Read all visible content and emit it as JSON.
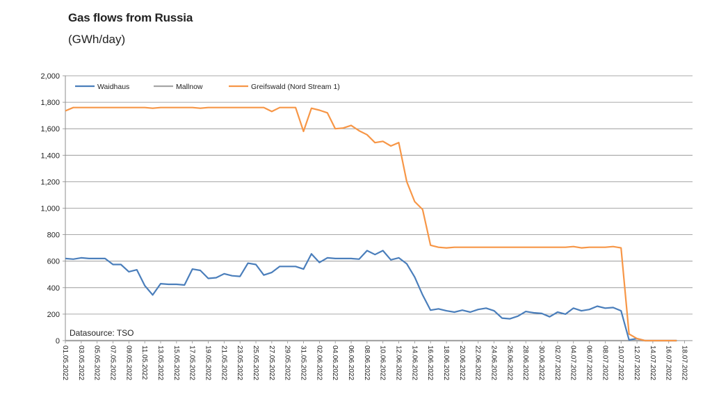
{
  "chart_data": {
    "type": "line",
    "title": "Gas flows from Russia",
    "subtitle": "(GWh/day)",
    "ylim": [
      0,
      2000
    ],
    "yticks": [
      "0",
      "200",
      "400",
      "600",
      "800",
      "1,000",
      "1,200",
      "1,400",
      "1,600",
      "1,800",
      "2,000"
    ],
    "xticks": [
      "01.05.2022",
      "03.05.2022",
      "05.05.2022",
      "07.05.2022",
      "09.05.2022",
      "11.05.2022",
      "13.05.2022",
      "15.05.2022",
      "17.05.2022",
      "19.05.2022",
      "21.05.2022",
      "23.05.2022",
      "25.05.2022",
      "27.05.2022",
      "29.05.2022",
      "31.05.2022",
      "02.06.2022",
      "04.06.2022",
      "06.06.2022",
      "08.06.2022",
      "10.06.2022",
      "12.06.2022",
      "14.06.2022",
      "16.06.2022",
      "18.06.2022",
      "20.06.2022",
      "22.06.2022",
      "24.06.2022",
      "26.06.2022",
      "28.06.2022",
      "30.06.2022",
      "02.07.2022",
      "04.07.2022",
      "06.07.2022",
      "08.07.2022",
      "10.07.2022",
      "12.07.2022",
      "14.07.2022",
      "16.07.2022",
      "18.07.2022"
    ],
    "grid": true,
    "legend_position": "top-left",
    "annotation": "Datasource: TSO",
    "series": [
      {
        "name": "Waidhaus",
        "color": "#4a7ebb",
        "values": [
          620,
          615,
          625,
          620,
          620,
          620,
          575,
          575,
          520,
          535,
          415,
          345,
          430,
          425,
          425,
          420,
          540,
          530,
          470,
          475,
          505,
          490,
          485,
          585,
          575,
          495,
          515,
          560,
          560,
          560,
          540,
          655,
          590,
          625,
          620,
          620,
          620,
          615,
          680,
          650,
          680,
          610,
          625,
          580,
          480,
          345,
          230,
          240,
          225,
          215,
          230,
          215,
          235,
          245,
          225,
          170,
          165,
          185,
          220,
          210,
          205,
          180,
          215,
          200,
          245,
          225,
          235,
          260,
          245,
          250,
          225,
          5,
          15,
          0,
          0,
          0,
          0,
          0
        ]
      },
      {
        "name": "Mallnow",
        "color": "#a5a5a5",
        "values": [
          0,
          0,
          0,
          0,
          0,
          0,
          0,
          0,
          0,
          0,
          0,
          0,
          0,
          0,
          0,
          0,
          0,
          0,
          0,
          0,
          0,
          0,
          0,
          0,
          0,
          0,
          0,
          0,
          0,
          0,
          0,
          0,
          0,
          0,
          0,
          0,
          0,
          0,
          0,
          0,
          0,
          0,
          0,
          0,
          0,
          0,
          0,
          0,
          0,
          0,
          0,
          0,
          0,
          0,
          0,
          0,
          0,
          0,
          0,
          0,
          0,
          0,
          0,
          0,
          0,
          0,
          0,
          0,
          0,
          0,
          0,
          0,
          0,
          0,
          0,
          0,
          0,
          0
        ]
      },
      {
        "name": "Greifswald (Nord Stream 1)",
        "color": "#f79646",
        "values": [
          1735,
          1760,
          1760,
          1760,
          1760,
          1760,
          1760,
          1760,
          1760,
          1760,
          1760,
          1755,
          1760,
          1760,
          1760,
          1760,
          1760,
          1755,
          1760,
          1760,
          1760,
          1760,
          1760,
          1760,
          1760,
          1760,
          1730,
          1760,
          1760,
          1760,
          1580,
          1755,
          1740,
          1720,
          1600,
          1605,
          1625,
          1585,
          1555,
          1495,
          1505,
          1470,
          1495,
          1200,
          1050,
          990,
          720,
          705,
          700,
          705,
          705,
          705,
          705,
          705,
          705,
          705,
          705,
          705,
          705,
          705,
          705,
          705,
          705,
          705,
          710,
          700,
          705,
          705,
          705,
          710,
          700,
          50,
          15,
          0,
          0,
          0,
          0,
          0
        ]
      }
    ]
  }
}
